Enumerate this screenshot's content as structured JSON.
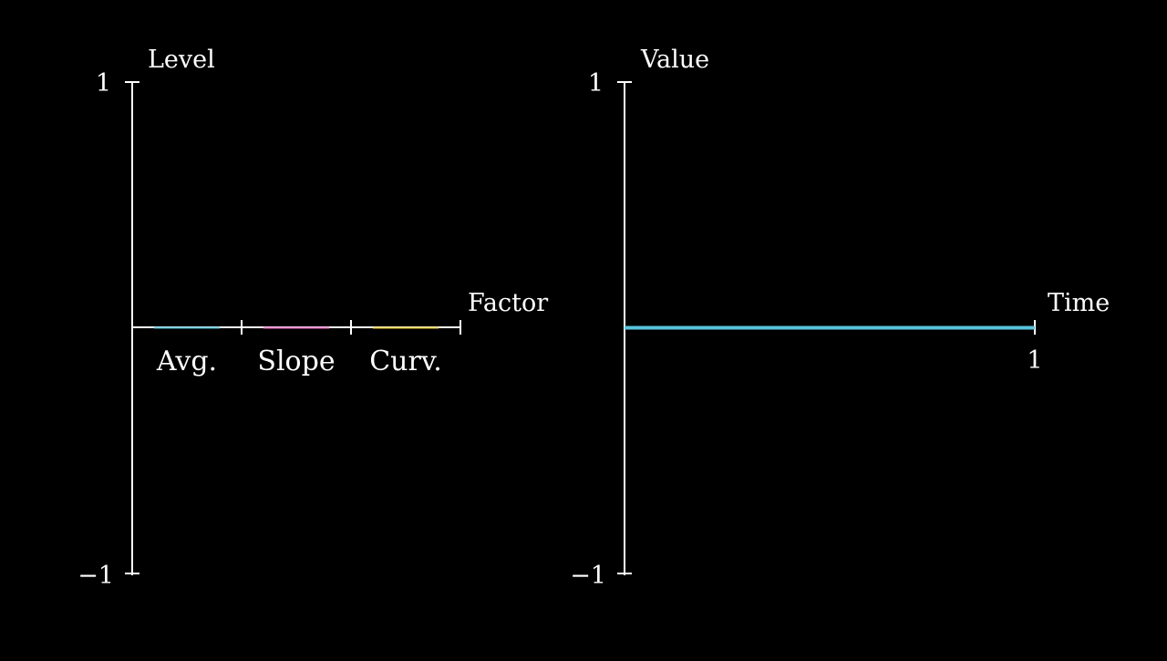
{
  "chart_data": [
    {
      "type": "bar",
      "ylabel": "Level",
      "xlabel": "Factor",
      "categories": [
        "Avg.",
        "Slope",
        "Curv."
      ],
      "values": [
        0,
        0,
        0
      ],
      "colors": [
        "#58c4dd",
        "#ff79c6",
        "#f4d345"
      ],
      "ylim": [
        -1,
        1
      ],
      "yticks": [
        "1",
        "−1"
      ],
      "grid": false
    },
    {
      "type": "line",
      "ylabel": "Value",
      "xlabel": "Time",
      "x": [
        0,
        1
      ],
      "series": [
        {
          "values": [
            0,
            0
          ],
          "color": "#58c4dd"
        }
      ],
      "xlim": [
        0,
        1
      ],
      "ylim": [
        -1,
        1
      ],
      "xticks": [
        "1"
      ],
      "yticks": [
        "1",
        "−1"
      ],
      "grid": false
    }
  ]
}
